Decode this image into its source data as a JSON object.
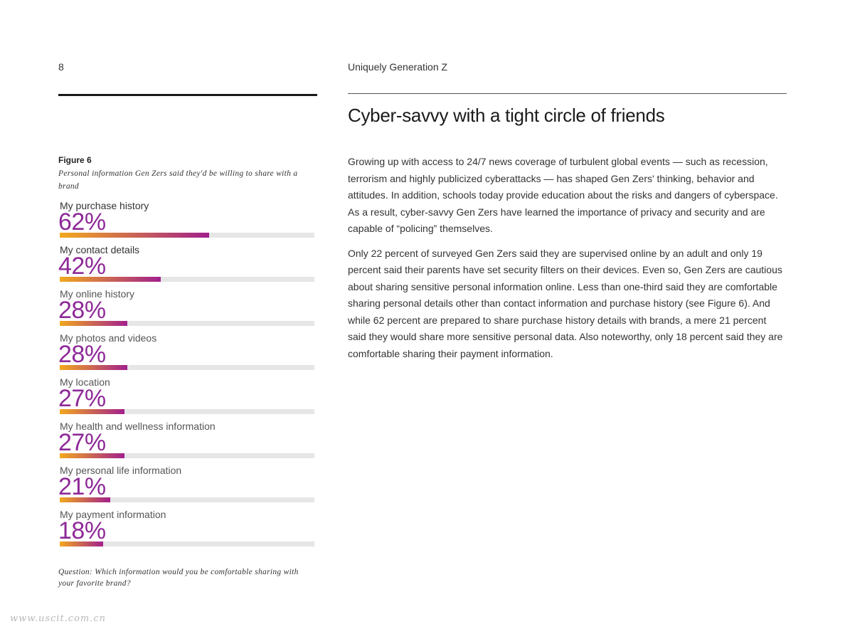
{
  "header": {
    "page_number": "8",
    "running_title": "Uniquely Generation Z"
  },
  "figure": {
    "label": "Figure 6",
    "caption": "Personal information Gen Zers said they'd be willing to share with a brand",
    "question": "Question: Which information would you be comfortable sharing with your favorite brand?"
  },
  "chart_data": {
    "type": "bar",
    "orientation": "horizontal",
    "categories": [
      "My purchase history",
      "My contact details",
      "My online history",
      "My photos and videos",
      "My location",
      "My health and wellness information",
      "My personal life information",
      "My payment information"
    ],
    "values": [
      62,
      42,
      28,
      28,
      27,
      27,
      21,
      18
    ],
    "value_labels": [
      "62%",
      "42%",
      "28%",
      "28%",
      "27%",
      "27%",
      "21%",
      "18%"
    ],
    "xlim": [
      0,
      100
    ],
    "colors": {
      "gradient_start": "#f2a81e",
      "gradient_end": "#a2208c",
      "track": "#e6e6e6",
      "value_text": "#8e2a97"
    }
  },
  "article": {
    "headline": "Cyber-savvy with a tight circle of friends",
    "paragraphs": [
      "Growing up with access to 24/7 news coverage of turbulent global events — such as recession, terrorism and highly publicized cyberattacks — has shaped Gen Zers' thinking, behavior and attitudes. In addition, schools today provide education about the risks and dangers of cyberspace. As a result, cyber-savvy Gen Zers have learned the importance of privacy and security and are capable of “policing” themselves.",
      "Only 22 percent of surveyed Gen Zers said they are supervised online by an adult and only 19 percent said their parents have set security filters on their devices. Even so, Gen Zers are cautious about sharing sensitive personal information online. Less than one-third said they are comfortable sharing personal details other than contact information and purchase history (see Figure 6). And while 62 percent are prepared to share purchase history details with brands, a mere 21 percent said they would share more sensitive personal data. Also noteworthy, only 18 percent said they are comfortable sharing their payment information."
    ]
  },
  "watermark": "www.uscit.com.cn"
}
